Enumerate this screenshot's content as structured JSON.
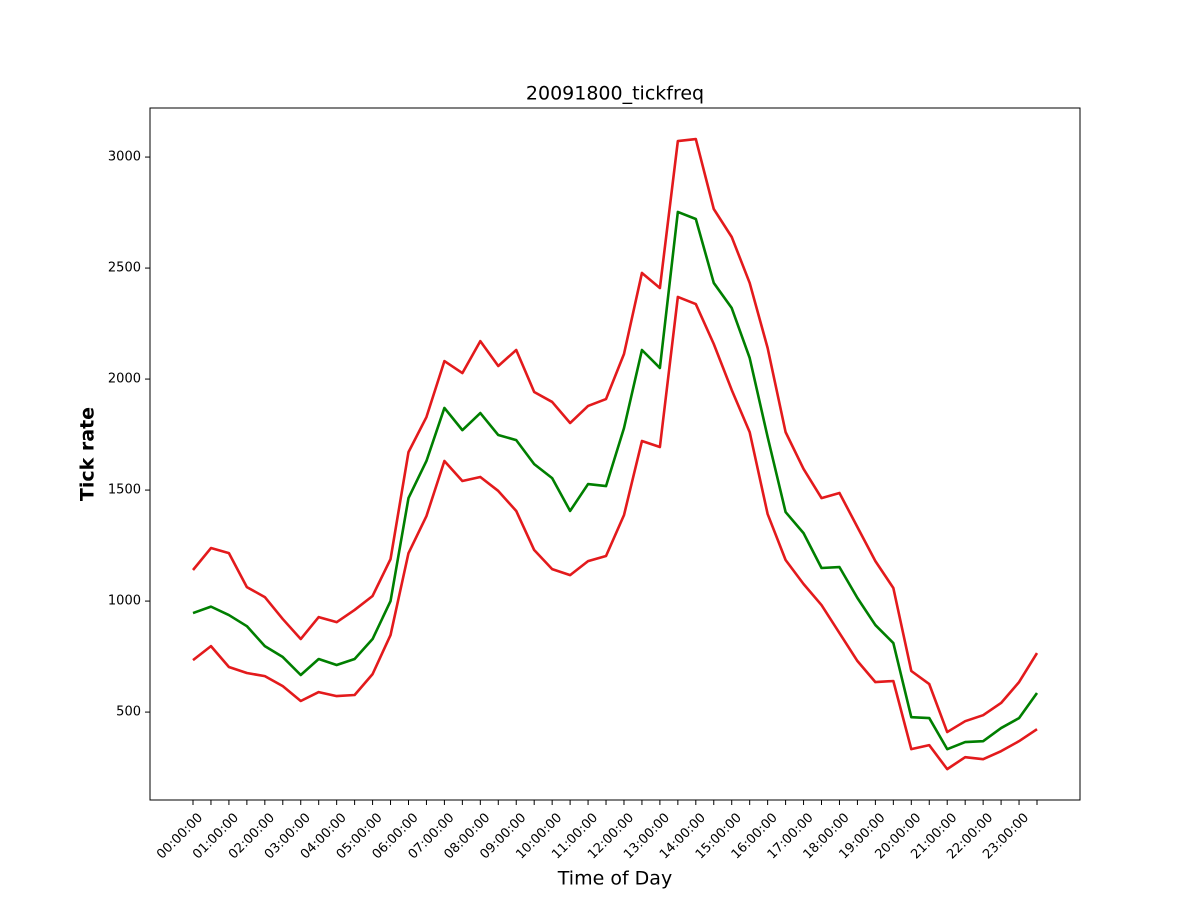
{
  "chart_data": {
    "type": "line",
    "title": "20091800_tickfreq",
    "x_label": "Time of Day",
    "y_label": "Tick rate",
    "categories": [
      "00:00:00",
      null,
      "01:00:00",
      null,
      "02:00:00",
      null,
      "03:00:00",
      null,
      "04:00:00",
      null,
      "05:00:00",
      null,
      "06:00:00",
      null,
      "07:00:00",
      null,
      "08:00:00",
      null,
      "09:00:00",
      null,
      "10:00:00",
      null,
      "11:00:00",
      null,
      "12:00:00",
      null,
      "13:00:00",
      null,
      "14:00:00",
      null,
      "15:00:00",
      null,
      "16:00:00",
      null,
      "17:00:00",
      null,
      "18:00:00",
      null,
      "19:00:00",
      null,
      "20:00:00",
      null,
      "21:00:00",
      null,
      "22:00:00",
      null,
      "23:00:00",
      null
    ],
    "series": [
      {
        "color": "#e31a1c",
        "values": [
          1140,
          1239,
          1216,
          1063,
          1018,
          919,
          829,
          928,
          905,
          960,
          1023,
          1189,
          1671,
          1829,
          2081,
          2027,
          2171,
          2059,
          2131,
          1942,
          1897,
          1802,
          1879,
          1910,
          2113,
          2478,
          2410,
          3072,
          3081,
          2766,
          2640,
          2433,
          2140,
          1761,
          1595,
          1464,
          1487,
          1333,
          1180,
          1059,
          685,
          626,
          410,
          459,
          486,
          541,
          635,
          766
        ]
      },
      {
        "color": "#007f00",
        "values": [
          946,
          975,
          937,
          887,
          797,
          748,
          667,
          739,
          712,
          739,
          829,
          1000,
          1464,
          1631,
          1870,
          1770,
          1847,
          1748,
          1725,
          1617,
          1554,
          1406,
          1527,
          1518,
          1779,
          2131,
          2050,
          2753,
          2721,
          2433,
          2320,
          2095,
          1739,
          1401,
          1306,
          1149,
          1153,
          1014,
          892,
          811,
          477,
          473,
          333,
          365,
          369,
          428,
          473,
          586
        ]
      },
      {
        "color": "#e31a1c",
        "values": [
          734,
          797,
          703,
          676,
          662,
          617,
          550,
          590,
          572,
          577,
          671,
          847,
          1216,
          1383,
          1631,
          1541,
          1559,
          1496,
          1406,
          1230,
          1144,
          1117,
          1180,
          1203,
          1387,
          1721,
          1694,
          2370,
          2338,
          2158,
          1951,
          1761,
          1392,
          1185,
          1077,
          982,
          856,
          730,
          635,
          640,
          333,
          351,
          243,
          297,
          288,
          324,
          369,
          423
        ]
      }
    ],
    "ylim": [
      104,
      3221
    ],
    "yticks": [
      500,
      1000,
      1500,
      2000,
      2500,
      3000
    ],
    "grid": false
  }
}
